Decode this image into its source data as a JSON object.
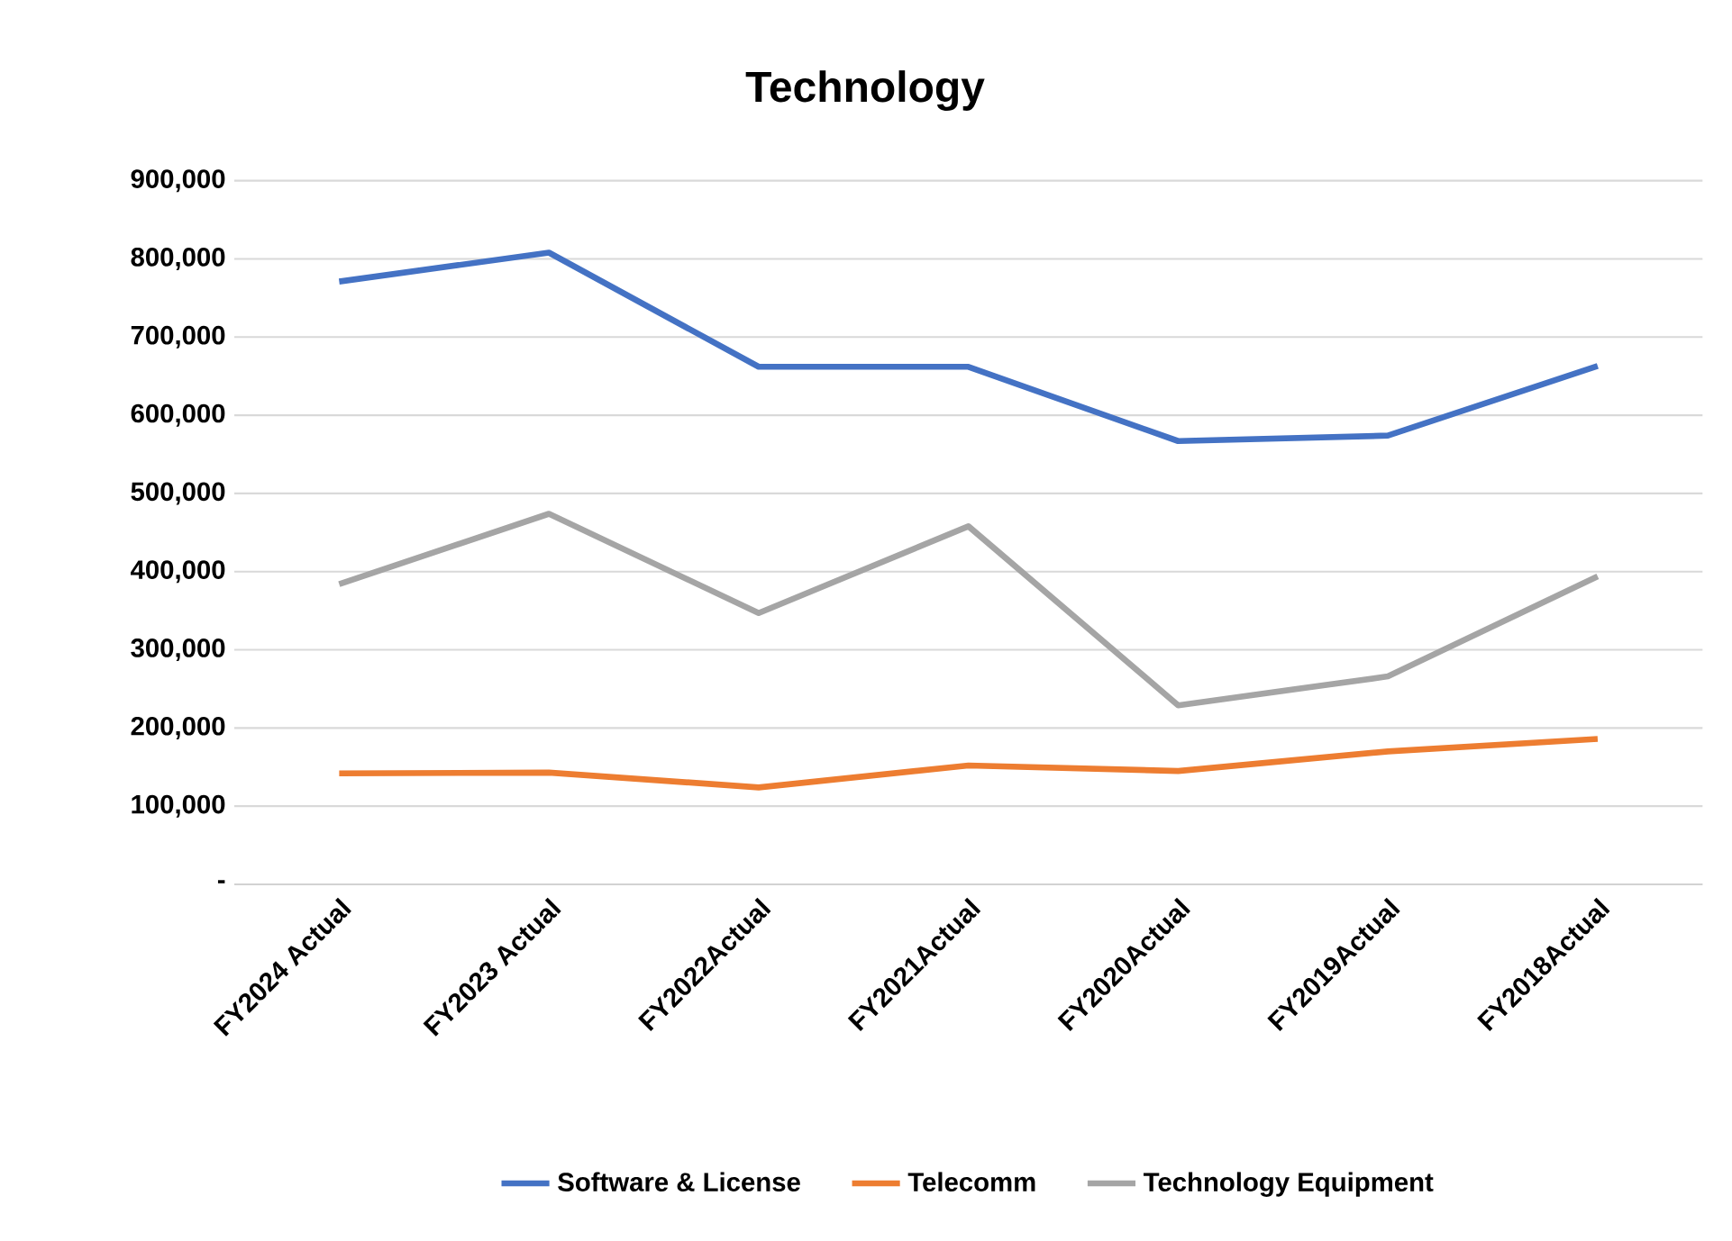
{
  "chart_data": {
    "type": "line",
    "title": "Technology",
    "categories": [
      "FY2024 Actual",
      "FY2023 Actual",
      "FY2022Actual",
      "FY2021Actual",
      "FY2020Actual",
      "FY2019Actual",
      "FY2018Actual"
    ],
    "series": [
      {
        "name": "Software & License",
        "color": "#4472c4",
        "values": [
          771000,
          808000,
          662000,
          662000,
          567000,
          574000,
          663000
        ]
      },
      {
        "name": "Telecomm",
        "color": "#ed7d31",
        "values": [
          142000,
          143000,
          124000,
          152000,
          145000,
          170000,
          186000
        ]
      },
      {
        "name": "Technology Equipment",
        "color": "#a5a5a5",
        "values": [
          384000,
          474000,
          347000,
          458000,
          229000,
          266000,
          394000
        ]
      }
    ],
    "ylim": [
      0,
      900000
    ],
    "yticks": [
      {
        "value": 0,
        "label": "-"
      },
      {
        "value": 100000,
        "label": "100,000"
      },
      {
        "value": 200000,
        "label": "200,000"
      },
      {
        "value": 300000,
        "label": "300,000"
      },
      {
        "value": 400000,
        "label": "400,000"
      },
      {
        "value": 500000,
        "label": "500,000"
      },
      {
        "value": 600000,
        "label": "600,000"
      },
      {
        "value": 700000,
        "label": "700,000"
      },
      {
        "value": 800000,
        "label": "800,000"
      },
      {
        "value": 900000,
        "label": "900,000"
      }
    ],
    "grid": "y",
    "legend": "bottom",
    "marker": "none",
    "line_style": "solid"
  }
}
